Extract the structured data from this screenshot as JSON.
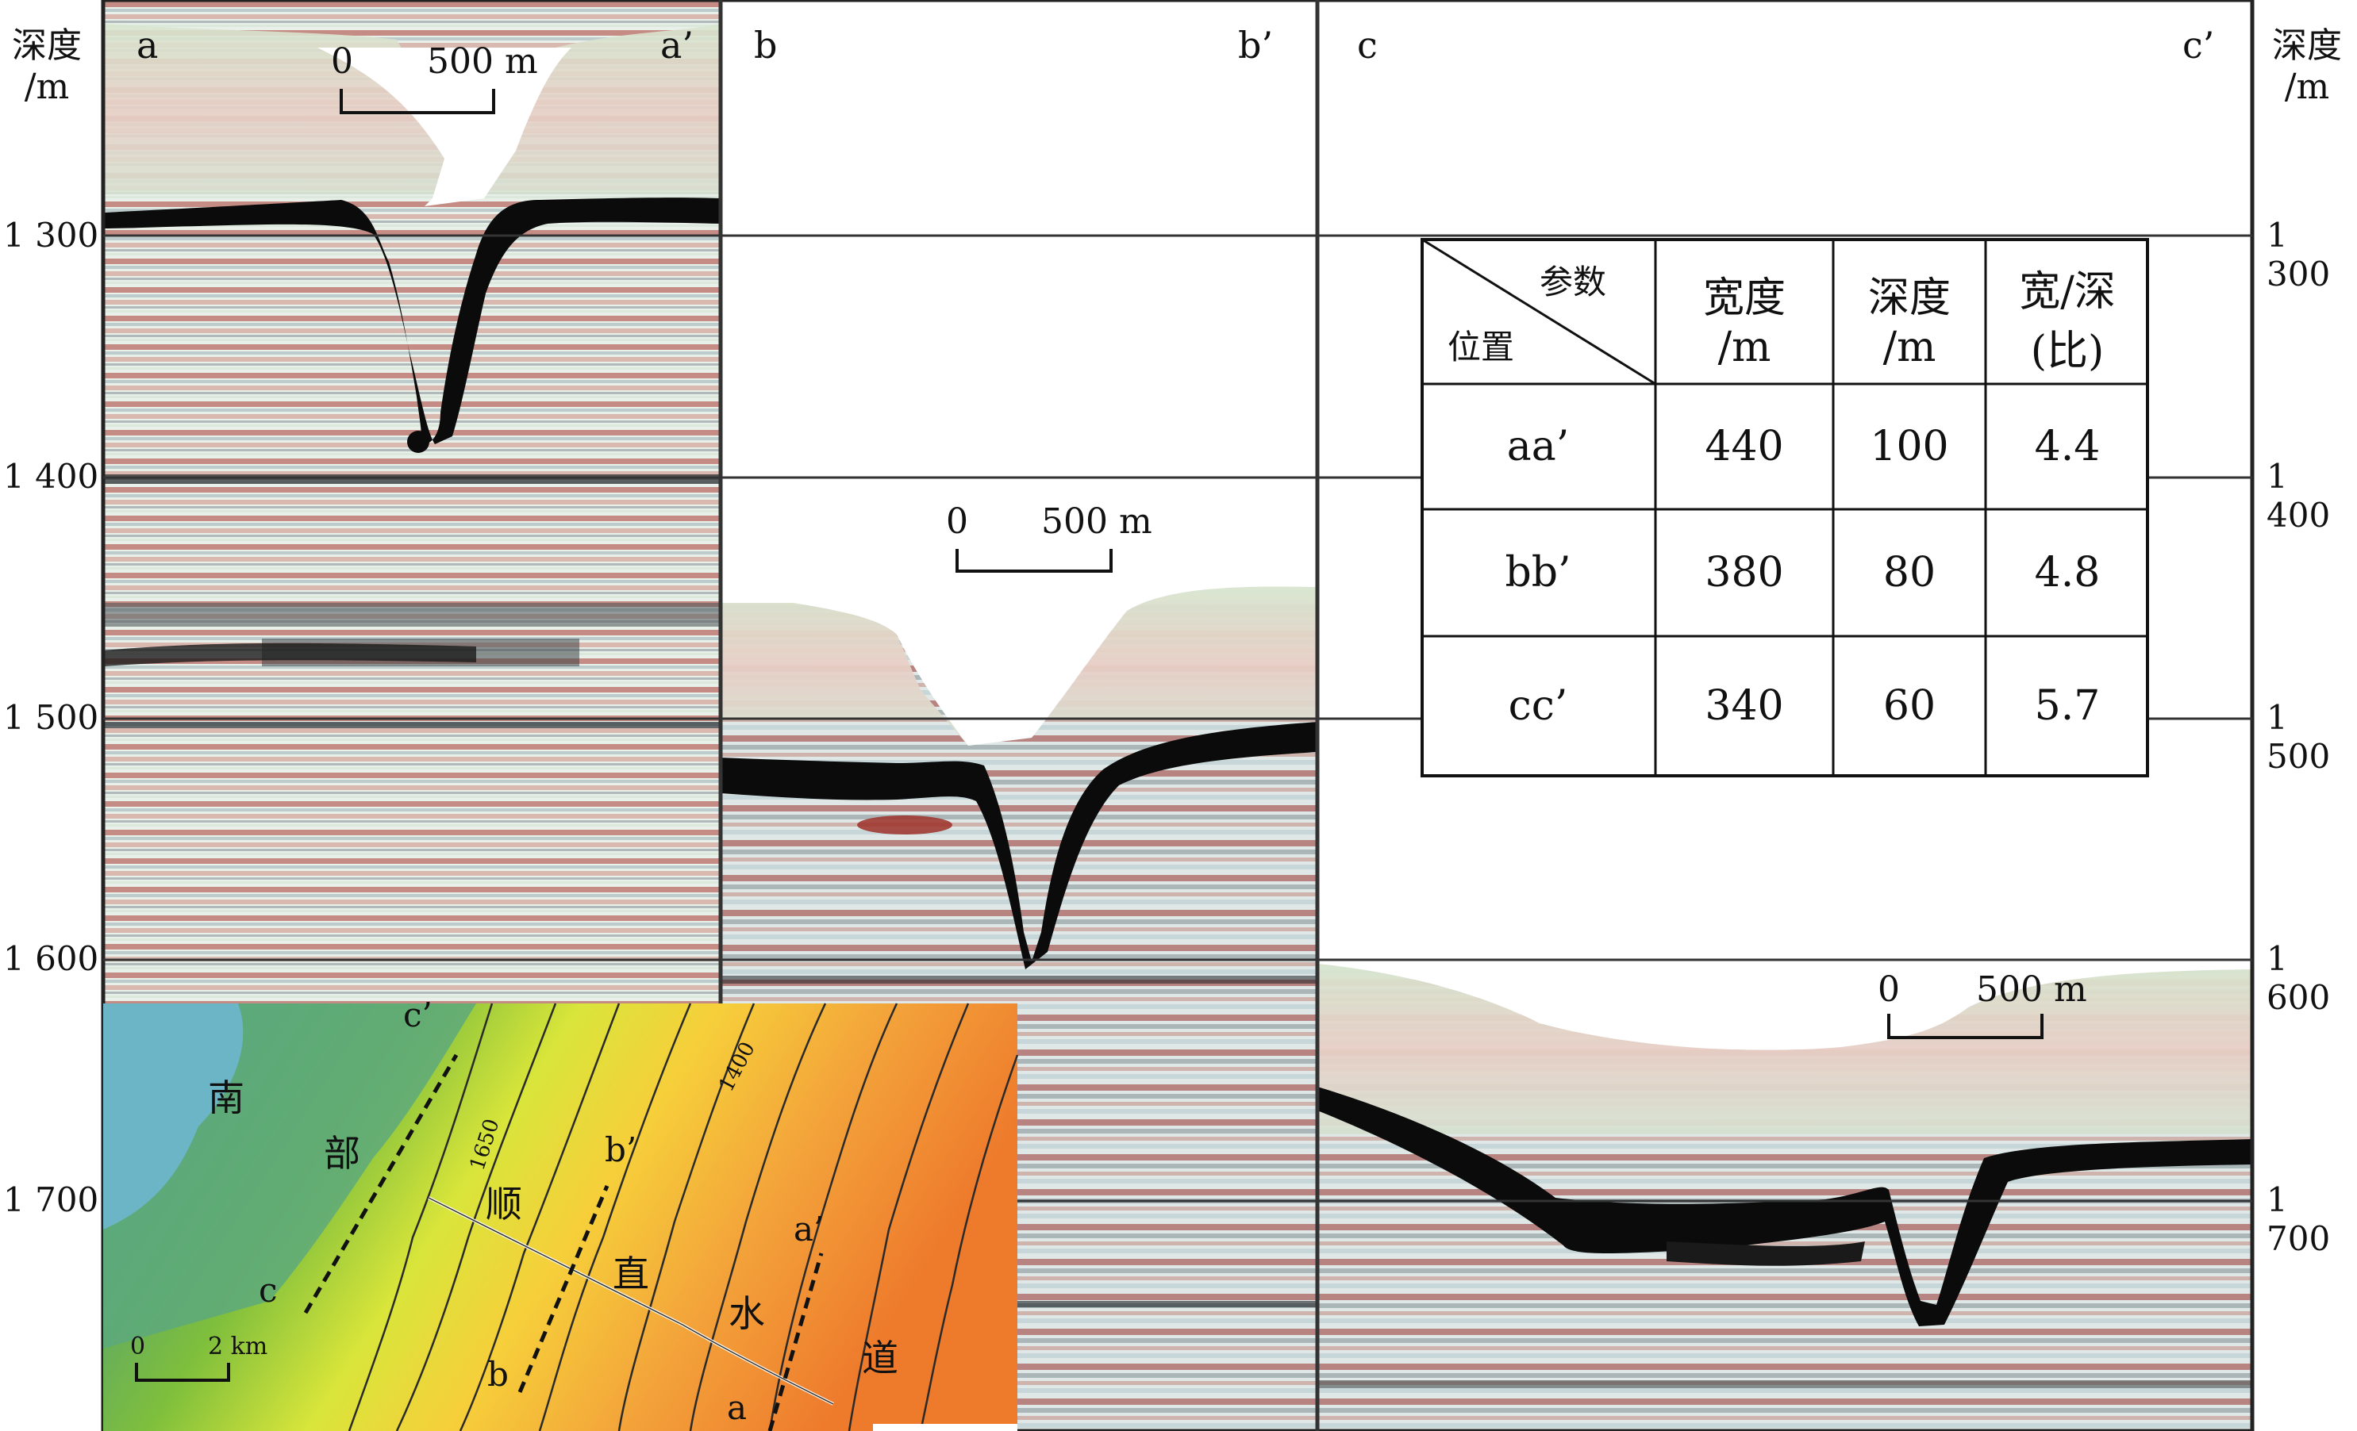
{
  "axis": {
    "left_title_line1": "深度",
    "left_title_line2": "/m",
    "right_title_line1": "深度",
    "right_title_line2": "/m",
    "ticks": [
      "1 300",
      "1 400",
      "1 500",
      "1 600",
      "1 700"
    ]
  },
  "panels": [
    {
      "left": "a",
      "right": "a’",
      "scale_zero": "0",
      "scale_len": "500 m"
    },
    {
      "left": "b",
      "right": "b’",
      "scale_zero": "0",
      "scale_len": "500 m"
    },
    {
      "left": "c",
      "right": "c’",
      "scale_zero": "0",
      "scale_len": "500 m"
    }
  ],
  "table": {
    "corner_top": "参数",
    "corner_bottom": "位置",
    "headers": [
      {
        "line1": "宽度",
        "line2": "/m"
      },
      {
        "line1": "深度",
        "line2": "/m"
      },
      {
        "line1": "宽/深",
        "line2": "(比)"
      }
    ],
    "rows": [
      {
        "pos": "aa’",
        "width": "440",
        "depth": "100",
        "ratio": "4.4"
      },
      {
        "pos": "bb’",
        "width": "380",
        "depth": "80",
        "ratio": "4.8"
      },
      {
        "pos": "cc’",
        "width": "340",
        "depth": "60",
        "ratio": "5.7"
      }
    ]
  },
  "map": {
    "chars": [
      "南",
      "部",
      "顺",
      "直",
      "水",
      "道"
    ],
    "contour_1650": "1650",
    "contour_1400": "1400",
    "lines": {
      "a": "a",
      "a_prime": "a’",
      "b": "b",
      "b_prime": "b’",
      "c": "c",
      "c_prime": "c’"
    },
    "scale_zero": "0",
    "scale_len": "2 km"
  }
}
